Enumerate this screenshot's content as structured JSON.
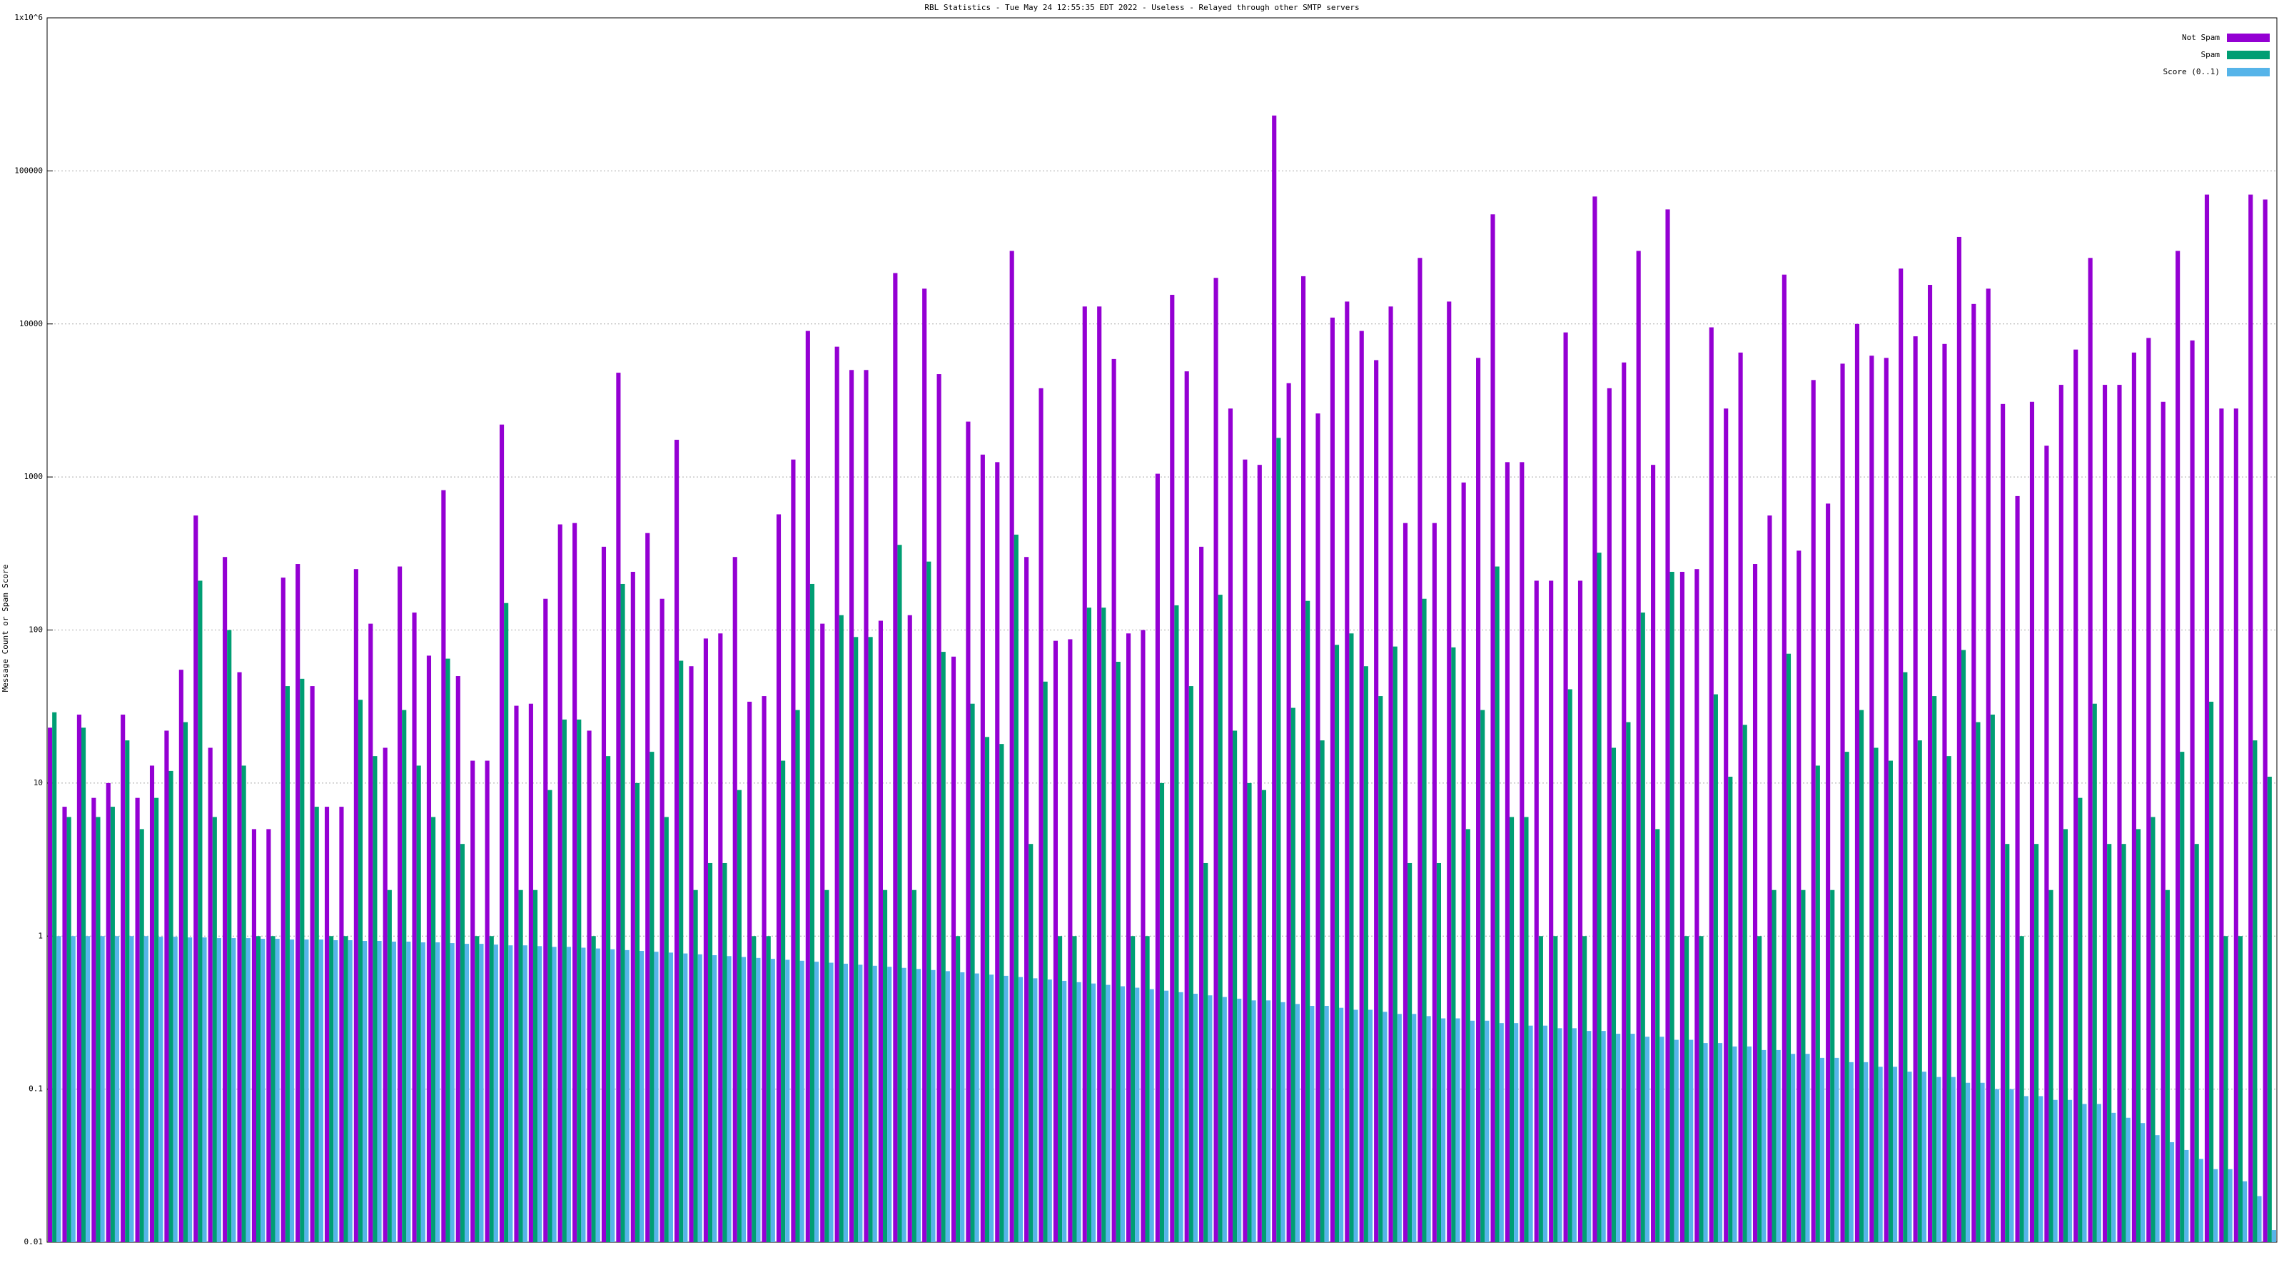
{
  "chart_data": {
    "type": "bar",
    "title": "RBL Statistics - Tue May 24 12:55:35 EDT 2022 - Useless - Relayed through other SMTP servers",
    "y_label": "Message Count or Spam Score",
    "log_y": true,
    "grid": true,
    "legend": "top-right",
    "ylim": [
      0.01,
      1000000
    ],
    "yticks": [
      0.01,
      0.1,
      1,
      10,
      100,
      1000,
      10000,
      100000,
      {
        "value": 1000000,
        "label": "1x10^6"
      }
    ],
    "categories": [
      null,
      null,
      null,
      null,
      null,
      null,
      null,
      null,
      null,
      null,
      null,
      null,
      null,
      null,
      null,
      null,
      null,
      null,
      null,
      null,
      null,
      null,
      null,
      null,
      null,
      null,
      null,
      null,
      null,
      null,
      null,
      null,
      null,
      null,
      null,
      null,
      null,
      null,
      null,
      null,
      null,
      null,
      null,
      null,
      null,
      null,
      null,
      null,
      null,
      null,
      null,
      null,
      null,
      null,
      null,
      null,
      null,
      null,
      null,
      null,
      null,
      null,
      null,
      null,
      null,
      null,
      null,
      null,
      null,
      null,
      null,
      null,
      null,
      null,
      null,
      null,
      null,
      null,
      null,
      null,
      null,
      null,
      null,
      null,
      null,
      null,
      null,
      null,
      null,
      null,
      null,
      null,
      null,
      null,
      null,
      null,
      null,
      null,
      null,
      null,
      null,
      null,
      null,
      null,
      null,
      null,
      null,
      null,
      null,
      null,
      null,
      null,
      null,
      null,
      null,
      null,
      null,
      null,
      null,
      null,
      null,
      null,
      null,
      null,
      null,
      null,
      null,
      null,
      null,
      null,
      null,
      null,
      null,
      null,
      null,
      null,
      null,
      null,
      null,
      null,
      null,
      null,
      null,
      null,
      null,
      null,
      null,
      null,
      null,
      null,
      null,
      null,
      null
    ],
    "series": [
      {
        "name": "Not Spam",
        "color": "#9400d3",
        "values": [
          23,
          7,
          28,
          8,
          10,
          28,
          8,
          13,
          22,
          55,
          560,
          17,
          300,
          53,
          5,
          5,
          220,
          270,
          43,
          7,
          7,
          250,
          110,
          17,
          260,
          130,
          68,
          820,
          50,
          14,
          14,
          2200,
          32,
          33,
          160,
          490,
          500,
          22,
          350,
          4800,
          240,
          430,
          160,
          1750,
          58,
          88,
          95,
          300,
          34,
          37,
          570,
          1300,
          9000,
          110,
          7100,
          5000,
          5000,
          115,
          21500,
          125,
          17000,
          4700,
          67,
          2300,
          1400,
          1250,
          30000,
          300,
          3800,
          85,
          87,
          13000,
          13000,
          5900,
          95,
          100,
          1050,
          15500,
          4900,
          350,
          20000,
          2800,
          1300,
          1200,
          230000,
          4100,
          20500,
          2600,
          11000,
          14000,
          9000,
          5800,
          13000,
          500,
          27000,
          500,
          14000,
          920,
          6000,
          52000,
          1250,
          1250,
          210,
          210,
          8800,
          210,
          68000,
          3800,
          5600,
          30000,
          1200,
          56000,
          240,
          250,
          9500,
          2800,
          6500,
          270,
          560,
          21000,
          330,
          4300,
          670,
          5500,
          10000,
          6200,
          6000,
          23000,
          8300,
          18000,
          7400,
          37000,
          13500,
          17000,
          3000,
          750,
          3100,
          1600,
          4000,
          6800,
          27000,
          4000,
          4000,
          6500,
          8100,
          3100,
          30000,
          7800,
          70000,
          2800,
          2800,
          70000,
          65000
        ]
      },
      {
        "name": "Spam",
        "color": "#009e73",
        "values": [
          29,
          6,
          23,
          6,
          7,
          19,
          5,
          8,
          12,
          25,
          210,
          6,
          100,
          13,
          1,
          1,
          43,
          48,
          7,
          1,
          1,
          35,
          15,
          2,
          30,
          13,
          6,
          65,
          4,
          1,
          1,
          150,
          2,
          2,
          9,
          26,
          26,
          1,
          15,
          200,
          10,
          16,
          6,
          63,
          2,
          3,
          3,
          9,
          1,
          1,
          14,
          30,
          200,
          2,
          125,
          90,
          90,
          2,
          360,
          2,
          280,
          72,
          1,
          33,
          20,
          18,
          420,
          4,
          46,
          1,
          1,
          140,
          140,
          62,
          1,
          1,
          10,
          145,
          43,
          3,
          170,
          22,
          10,
          9,
          1800,
          31,
          155,
          19,
          80,
          95,
          58,
          37,
          78,
          3,
          160,
          3,
          77,
          5,
          30,
          260,
          6,
          6,
          1,
          1,
          41,
          1,
          320,
          17,
          25,
          130,
          5,
          240,
          1,
          1,
          38,
          11,
          24,
          1,
          2,
          70,
          2,
          13,
          2,
          16,
          30,
          17,
          14,
          53,
          19,
          37,
          15,
          74,
          25,
          28,
          4,
          1,
          4,
          2,
          5,
          8,
          33,
          4,
          4,
          5,
          6,
          2,
          16,
          4,
          34,
          1,
          1,
          19,
          11
        ]
      },
      {
        "name": "Score (0..1)",
        "color": "#56b4e9",
        "values": [
          1,
          1,
          1,
          1,
          1,
          1,
          1,
          0.99,
          0.99,
          0.98,
          0.98,
          0.97,
          0.97,
          0.97,
          0.96,
          0.96,
          0.95,
          0.95,
          0.95,
          0.94,
          0.94,
          0.93,
          0.93,
          0.92,
          0.92,
          0.91,
          0.91,
          0.9,
          0.89,
          0.89,
          0.88,
          0.87,
          0.87,
          0.86,
          0.85,
          0.85,
          0.84,
          0.83,
          0.82,
          0.81,
          0.8,
          0.79,
          0.78,
          0.77,
          0.76,
          0.75,
          0.74,
          0.73,
          0.72,
          0.71,
          0.7,
          0.69,
          0.68,
          0.67,
          0.66,
          0.65,
          0.64,
          0.63,
          0.62,
          0.61,
          0.6,
          0.59,
          0.58,
          0.57,
          0.56,
          0.55,
          0.54,
          0.53,
          0.52,
          0.51,
          0.5,
          0.49,
          0.48,
          0.47,
          0.46,
          0.45,
          0.44,
          0.43,
          0.42,
          0.41,
          0.4,
          0.39,
          0.38,
          0.38,
          0.37,
          0.36,
          0.35,
          0.35,
          0.34,
          0.33,
          0.33,
          0.32,
          0.31,
          0.31,
          0.3,
          0.29,
          0.29,
          0.28,
          0.28,
          0.27,
          0.27,
          0.26,
          0.26,
          0.25,
          0.25,
          0.24,
          0.24,
          0.23,
          0.23,
          0.22,
          0.22,
          0.21,
          0.21,
          0.2,
          0.2,
          0.19,
          0.19,
          0.18,
          0.18,
          0.17,
          0.17,
          0.16,
          0.16,
          0.15,
          0.15,
          0.14,
          0.14,
          0.13,
          0.13,
          0.12,
          0.12,
          0.11,
          0.11,
          0.1,
          0.1,
          0.09,
          0.09,
          0.085,
          0.085,
          0.08,
          0.08,
          0.07,
          0.065,
          0.06,
          0.05,
          0.045,
          0.04,
          0.035,
          0.03,
          0.03,
          0.025,
          0.02,
          0.012
        ]
      }
    ]
  }
}
